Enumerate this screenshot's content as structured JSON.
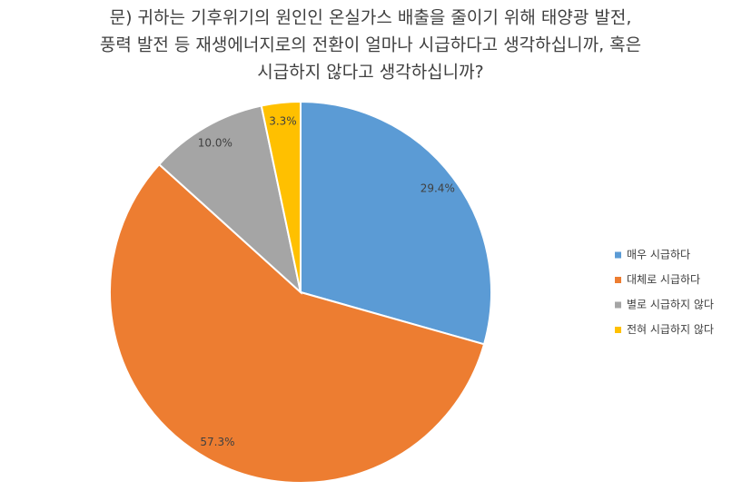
{
  "chart_data": {
    "type": "pie",
    "title": [
      "문) 귀하는 기후위기의 원인인 온실가스 배출을 줄이기 위해 태양광 발전,",
      "풍력 발전 등 재생에너지로의 전환이 얼마나 시급하다고 생각하십니까, 혹은",
      "시급하지 않다고 생각하십니까?"
    ],
    "categories": [
      "매우 시급하다",
      "대체로 시급하다",
      "별로 시급하지 않다",
      "전혀 시급하지 않다"
    ],
    "values": [
      29.4,
      57.3,
      10.0,
      3.3
    ],
    "value_labels": [
      "29.4%",
      "57.3%",
      "10.0%",
      "3.3%"
    ],
    "colors": [
      "#5b9bd5",
      "#ed7d31",
      "#a5a5a5",
      "#ffc000"
    ],
    "legend": "right"
  }
}
